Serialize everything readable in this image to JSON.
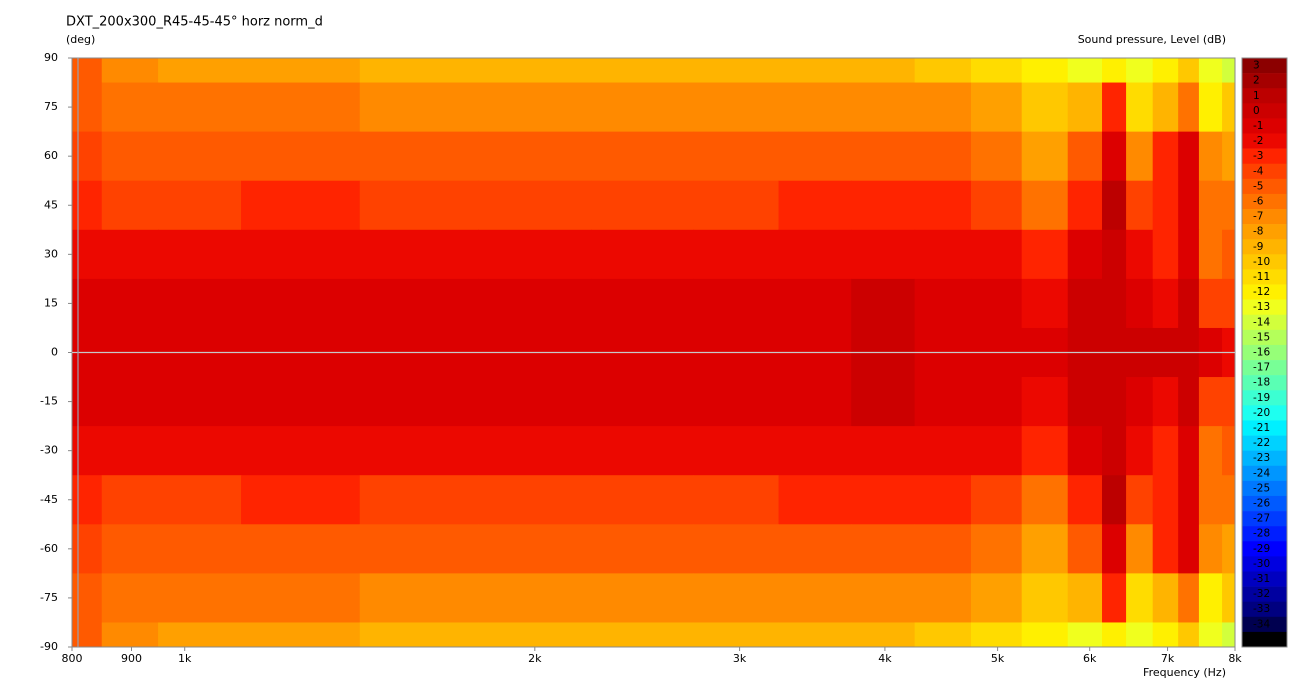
{
  "chart_data": {
    "type": "contour",
    "title": "DXT_200x300_R45-45-45° horz norm_d",
    "y_label": "(deg)",
    "x_label": "Frequency (Hz)",
    "colorbar_label": "Sound pressure, Level  (dB)",
    "x_log": true,
    "x": [
      800,
      900,
      1000,
      1250,
      1600,
      2000,
      2500,
      3000,
      3500,
      4000,
      4500,
      5000,
      5500,
      6000,
      6300,
      6600,
      7000,
      7300,
      7600,
      8000
    ],
    "y": [
      90,
      75,
      60,
      45,
      30,
      15,
      0,
      -15,
      -30,
      -45,
      -60,
      -75,
      -90
    ],
    "values": [
      [
        -5,
        -7,
        -7.5,
        -8,
        -8.5,
        -9,
        -9,
        -9,
        -9,
        -8.5,
        -10,
        -11,
        -12,
        -13,
        -12,
        -13,
        -12,
        -10,
        -13,
        -14
      ],
      [
        -4.5,
        -5.5,
        -6,
        -6,
        -6.5,
        -6.5,
        -6.5,
        -7,
        -6.5,
        -6.5,
        -7,
        -8,
        -10,
        -9,
        -3,
        -11,
        -9,
        -6,
        -12,
        -10
      ],
      [
        -4,
        -4.5,
        -5,
        -4.5,
        -5,
        -5,
        -5,
        -5,
        -5,
        -4.5,
        -5,
        -6,
        -8,
        -5,
        -1,
        -7,
        -3,
        -1,
        -7,
        -8
      ],
      [
        -3,
        -3.5,
        -3.5,
        -3,
        -3.5,
        -3.5,
        -3.5,
        -3.5,
        -3,
        -3,
        -3,
        -3.5,
        -6,
        -3,
        1,
        -4,
        -3,
        -1,
        -6,
        -6
      ],
      [
        -2,
        -2,
        -2,
        -1.5,
        -2,
        -2,
        -1.5,
        -2,
        -2,
        -1.5,
        -1.5,
        -2,
        -3,
        -1,
        0,
        -2,
        -3,
        -1,
        -6,
        -5
      ],
      [
        -1,
        -1,
        -1,
        -1,
        -1,
        -1,
        -1,
        -1,
        -1,
        0,
        -1,
        -1,
        -1.5,
        0,
        0,
        -1,
        -2,
        0,
        -4,
        -4
      ],
      [
        -0.5,
        -0.5,
        -0.5,
        -0.5,
        -0.5,
        -0.5,
        -0.5,
        -0.5,
        -0.5,
        0.5,
        -0.5,
        -0.5,
        -0.5,
        0,
        0,
        0,
        0,
        0,
        -1,
        -2
      ],
      [
        -1,
        -1,
        -1,
        -1,
        -1,
        -1,
        -1,
        -1,
        -1,
        0,
        -1,
        -1,
        -1.5,
        0,
        0,
        -1,
        -2,
        0,
        -4,
        -4
      ],
      [
        -2,
        -2,
        -2,
        -1.5,
        -2,
        -2,
        -1.5,
        -2,
        -2,
        -1.5,
        -1.5,
        -2,
        -3,
        -1,
        0,
        -2,
        -3,
        -1,
        -6,
        -5
      ],
      [
        -3,
        -3.5,
        -3.5,
        -3,
        -3.5,
        -3.5,
        -3.5,
        -3.5,
        -3,
        -3,
        -3,
        -3.5,
        -6,
        -3,
        1,
        -4,
        -3,
        -1,
        -6,
        -6
      ],
      [
        -4,
        -4.5,
        -5,
        -4.5,
        -5,
        -5,
        -5,
        -5,
        -5,
        -4.5,
        -5,
        -6,
        -8,
        -5,
        -1,
        -7,
        -3,
        -1,
        -7,
        -8
      ],
      [
        -4.5,
        -5.5,
        -6,
        -6,
        -6.5,
        -6.5,
        -6.5,
        -7,
        -6.5,
        -6.5,
        -7,
        -8,
        -10,
        -9,
        -3,
        -11,
        -9,
        -6,
        -12,
        -10
      ],
      [
        -5,
        -7,
        -7.5,
        -8,
        -8.5,
        -9,
        -9,
        -9,
        -9,
        -8.5,
        -10,
        -11,
        -12,
        -13,
        -12,
        -13,
        -12,
        -10,
        -13,
        -14
      ]
    ],
    "xlim": [
      800,
      8000
    ],
    "ylim": [
      -90,
      90
    ],
    "xticks": [
      800,
      900,
      {
        "value": 1000,
        "label": "1k"
      },
      {
        "value": 2000,
        "label": "2k"
      },
      {
        "value": 3000,
        "label": "3k"
      },
      {
        "value": 4000,
        "label": "4k"
      },
      {
        "value": 5000,
        "label": "5k"
      },
      {
        "value": 6000,
        "label": "6k"
      },
      {
        "value": 7000,
        "label": "7k"
      },
      {
        "value": 8000,
        "label": "8k"
      }
    ],
    "yticks": [
      90,
      75,
      60,
      45,
      30,
      15,
      0,
      -15,
      -30,
      -45,
      -60,
      -75,
      -90
    ],
    "levels": [
      3,
      2,
      1,
      0,
      -1,
      -2,
      -3,
      -4,
      -5,
      -6,
      -7,
      -8,
      -9,
      -10,
      -11,
      -12,
      -13,
      -14,
      -15,
      -16,
      -17,
      -18,
      -19,
      -20,
      -21,
      -22,
      -23,
      -24,
      -25,
      -26,
      -27,
      -28,
      -29,
      -30,
      -31,
      -32,
      -33,
      -34,
      -35
    ],
    "level_colors": [
      "#8c0000",
      "#a50000",
      "#bc0000",
      "#cc0000",
      "#dc0000",
      "#ec0800",
      "#ff2400",
      "#ff4200",
      "#ff5a00",
      "#ff7200",
      "#ff8a00",
      "#ffa000",
      "#ffb400",
      "#ffc800",
      "#ffdc00",
      "#fff000",
      "#f0ff1e",
      "#d2ff3c",
      "#b4ff5a",
      "#96ff78",
      "#78ff96",
      "#5affb4",
      "#3cffd2",
      "#1efff0",
      "#00f0ff",
      "#00d2ff",
      "#00b4ff",
      "#0096ff",
      "#0078ff",
      "#005aff",
      "#003cff",
      "#001eff",
      "#0000ff",
      "#0000e0",
      "#0000c0",
      "#0000a0",
      "#000080",
      "#000050",
      "#000000"
    ]
  }
}
